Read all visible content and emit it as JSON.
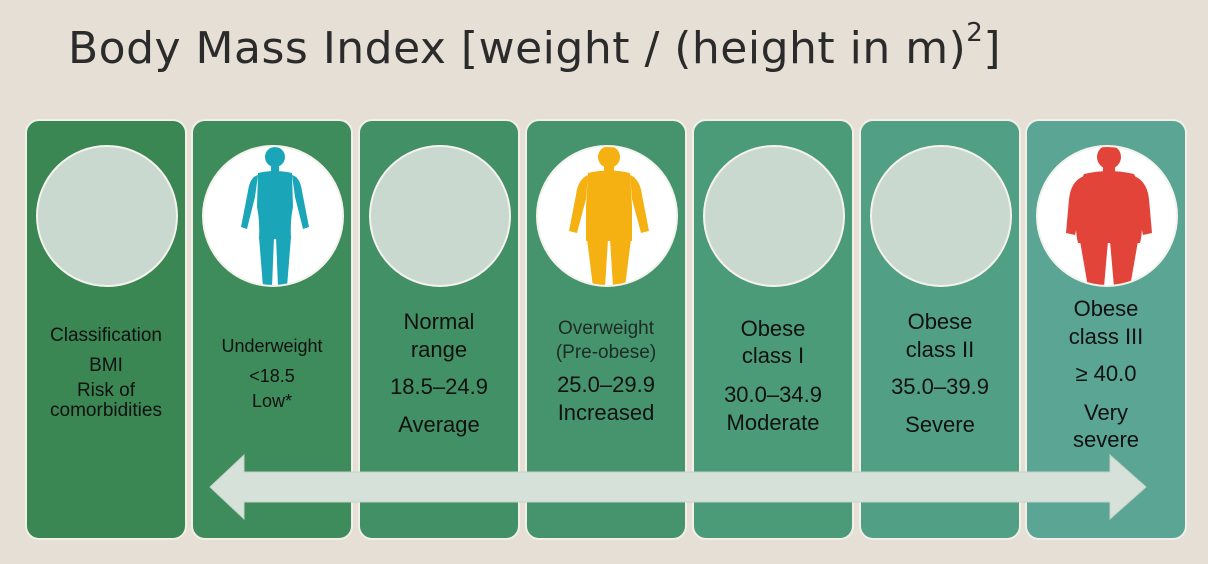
{
  "title": {
    "main": "Body Mass Index [weight / (height in m)",
    "sup": "2",
    "close": "]"
  },
  "colors": {
    "background": "#e5dfd5",
    "underweight_figure": "#1aa6b8",
    "overweight_figure": "#f5b011",
    "obese3_figure": "#e3443a"
  },
  "columns": [
    {
      "label": "Classification",
      "bmi": "BMI",
      "risk": "Risk of comorbidities",
      "risk_line1": "Risk of",
      "risk_line2": "comorbidities",
      "icon": "empty-circle"
    },
    {
      "label": "Underweight",
      "bmi": "<18.5",
      "risk": "Low*",
      "icon": "thin-body-figure"
    },
    {
      "label": "Normal range",
      "label_line1": "Normal",
      "label_line2": "range",
      "bmi": "18.5–24.9",
      "risk": "Average",
      "icon": "empty-circle"
    },
    {
      "label": "Overweight (Pre-obese)",
      "label_line1": "Overweight",
      "label_line2": "(Pre-obese)",
      "bmi": "25.0–29.9",
      "risk": "Increased",
      "icon": "medium-body-figure"
    },
    {
      "label": "Obese class I",
      "label_line1": "Obese",
      "label_line2": "class I",
      "bmi": "30.0–34.9",
      "risk": "Moderate",
      "icon": "empty-circle"
    },
    {
      "label": "Obese class II",
      "label_line1": "Obese",
      "label_line2": "class II",
      "bmi": "35.0–39.9",
      "risk": "Severe",
      "icon": "empty-circle"
    },
    {
      "label": "Obese class III",
      "label_line1": "Obese",
      "label_line2": "class III",
      "bmi": "≥ 40.0",
      "risk": "Very severe",
      "risk_line1": "Very",
      "risk_line2": "severe",
      "icon": "heavy-body-figure"
    }
  ]
}
